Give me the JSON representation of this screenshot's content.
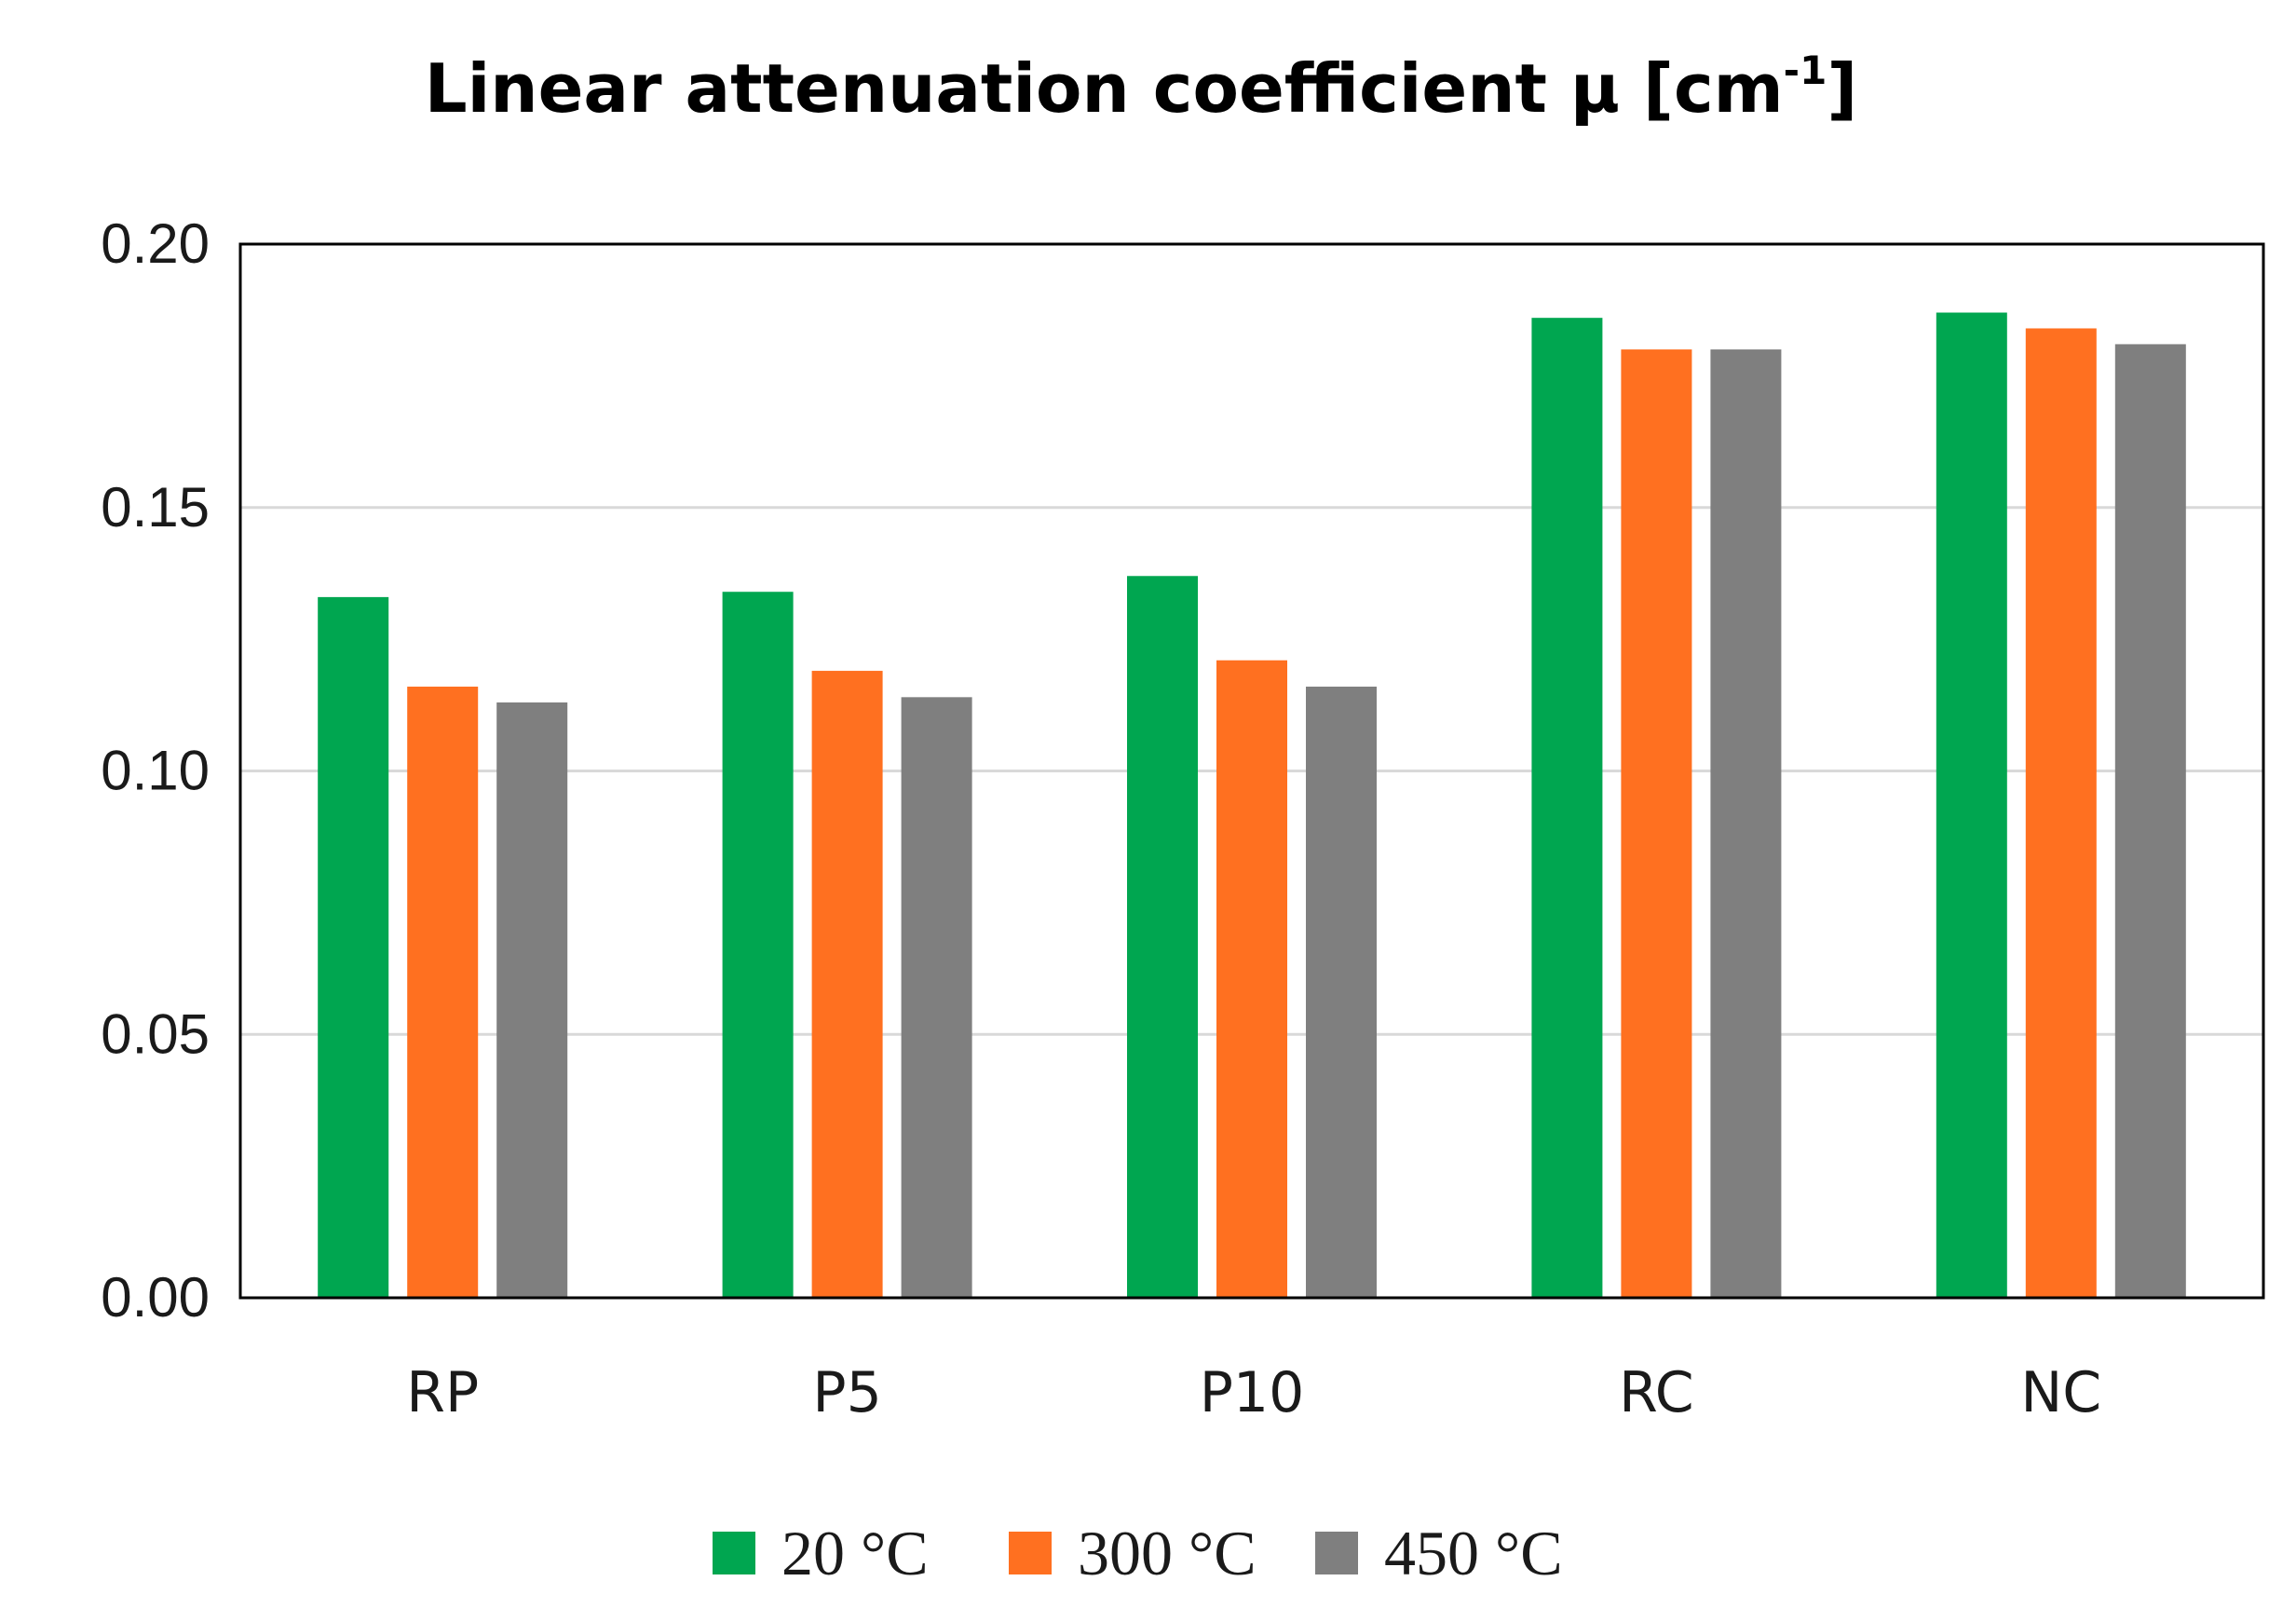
{
  "chart_data": {
    "type": "bar",
    "title": {
      "main": "Linear attenuation coefficient μ [cm",
      "superscript": "-1",
      "close": "]"
    },
    "categories": [
      "RP",
      "P5",
      "P10",
      "RC",
      "NC"
    ],
    "series": [
      {
        "name": "20 °C",
        "color": "#00A650",
        "values": [
          0.133,
          0.134,
          0.137,
          0.186,
          0.187
        ]
      },
      {
        "name": "300 °C",
        "color": "#FF7020",
        "values": [
          0.116,
          0.119,
          0.121,
          0.18,
          0.184
        ]
      },
      {
        "name": "450 °C",
        "color": "#7F7F7F",
        "values": [
          0.113,
          0.114,
          0.116,
          0.18,
          0.181
        ]
      }
    ],
    "yticks": [
      "0.00",
      "0.05",
      "0.10",
      "0.15",
      "0.20"
    ],
    "ylim": [
      0,
      0.2
    ],
    "xlabel": "",
    "ylabel": "",
    "grid": true,
    "legend_position": "bottom-center"
  }
}
